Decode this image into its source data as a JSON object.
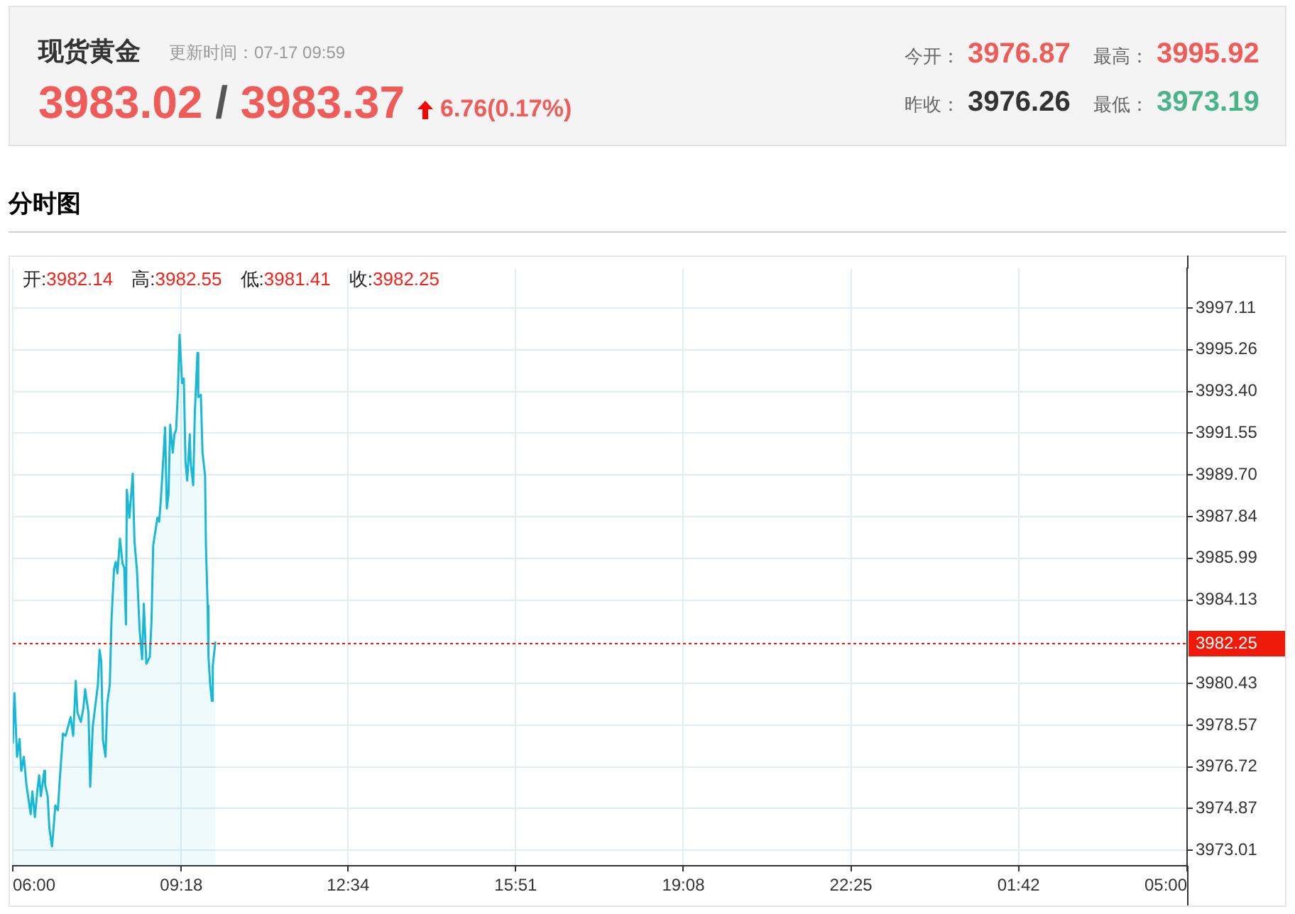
{
  "chart_data": {
    "type": "area",
    "title": "现货黄金",
    "subtitle": "更新时间：07-17 09:59",
    "annotations": [
      "3983.02 / 3983.37",
      "6.76(0.17%)",
      "今开： 3976.87",
      "最高： 3995.92",
      "昨收： 3976.26",
      "最低： 3973.19",
      "分时图",
      "开:3982.14",
      "高:3982.55",
      "低:3981.41",
      "收:3982.25"
    ],
    "x": [
      "--07-17T06:00",
      "--07-17T06:02",
      "--07-17T06:05",
      "--07-17T06:08",
      "--07-17T06:10",
      "--07-17T06:13",
      "--07-17T06:16",
      "--07-17T06:18",
      "--07-17T06:21",
      "--07-17T06:23",
      "--07-17T06:26",
      "--07-17T06:29",
      "--07-17T06:31",
      "--07-17T06:33",
      "--07-17T06:37",
      "--07-17T06:38",
      "--07-17T06:41",
      "--07-17T06:43",
      "--07-17T06:46",
      "--07-17T06:47",
      "--07-17T06:50",
      "--07-17T06:53",
      "--07-17T06:55",
      "--07-17T06:59",
      "--07-17T07:02",
      "--07-17T07:05",
      "--07-17T07:08",
      "--07-17T07:11",
      "--07-17T07:14",
      "--07-17T07:16",
      "--07-17T07:20",
      "--07-17T07:23",
      "--07-17T07:25",
      "--07-17T07:29",
      "--07-17T07:31",
      "--07-17T07:34",
      "--07-17T07:38",
      "--07-17T07:40",
      "--07-17T07:42",
      "--07-17T07:44",
      "--07-17T07:46",
      "--07-17T07:49",
      "--07-17T07:51",
      "--07-17T07:54",
      "--07-17T07:56",
      "--07-17T07:59",
      "--07-17T08:01",
      "--07-17T08:03",
      "--07-17T08:06",
      "--07-17T08:09",
      "--07-17T08:11",
      "--07-17T08:13",
      "--07-17T08:14",
      "--07-17T08:17",
      "--07-17T08:21",
      "--07-17T08:23",
      "--07-17T08:26",
      "--07-17T08:29",
      "--07-17T08:32",
      "--07-17T08:34",
      "--07-17T08:37",
      "--07-17T08:41",
      "--07-17T08:43",
      "--07-17T08:45",
      "--07-17T08:50",
      "--07-17T08:52",
      "--07-17T08:54",
      "--07-17T08:56",
      "--07-17T08:59",
      "--07-17T09:01",
      "--07-17T09:03",
      "--07-17T09:05",
      "--07-17T09:08",
      "--07-17T09:10",
      "--07-17T09:12",
      "--07-17T09:14",
      "--07-17T09:16",
      "--07-17T09:19",
      "--07-17T09:21",
      "--07-17T09:23",
      "--07-17T09:25",
      "--07-17T09:28",
      "--07-17T09:29",
      "--07-17T09:32",
      "--07-17T09:34",
      "--07-17T09:37",
      "--07-17T09:38",
      "--07-17T09:41",
      "--07-17T09:43",
      "--07-17T09:46",
      "--07-17T09:47",
      "--07-17T09:49",
      "--07-17T09:50",
      "--07-17T09:52",
      "--07-17T09:54",
      "--07-17T09:55",
      "--07-17T09:58"
    ],
    "values": [
      3977.79,
      3980,
      3977.17,
      3977.96,
      3976.55,
      3977.17,
      3975.94,
      3975.42,
      3974.62,
      3975.63,
      3974.49,
      3975.73,
      3976.35,
      3975.42,
      3976.55,
      3975.94,
      3975.42,
      3974,
      3973.19,
      3973.57,
      3975.01,
      3974.8,
      3976.04,
      3978.2,
      3978.1,
      3978.51,
      3978.93,
      3978.1,
      3980.54,
      3979.13,
      3978.72,
      3979.34,
      3980.17,
      3979.13,
      3975.84,
      3978.51,
      3979.75,
      3980.37,
      3981.92,
      3981.4,
      3977.9,
      3977.17,
      3979.55,
      3980.37,
      3983.26,
      3985.52,
      3985.83,
      3985.32,
      3986.86,
      3985.75,
      3985.57,
      3983.05,
      3989.03,
      3987.79,
      3989.75,
      3986.76,
      3985.42,
      3982.84,
      3981.5,
      3983.97,
      3981.3,
      3981.61,
      3983.15,
      3986.55,
      3987.79,
      3987.61,
      3988.61,
      3989.85,
      3991.81,
      3988.2,
      3988.82,
      3991.92,
      3990.68,
      3991.5,
      3991.71,
      3993.36,
      3995.92,
      3993.77,
      3993.97,
      3990.26,
      3989.44,
      3991.5,
      3990.26,
      3989.23,
      3992.53,
      3995.11,
      3993.15,
      3993.25,
      3990.68,
      3989.65,
      3986.55,
      3983.88,
      3981.61,
      3980.37,
      3979.65,
      3981.19,
      3982.25
    ],
    "color": "#19b9d6",
    "xlim": [
      "--07-17T06:00",
      "--07-18T05:00"
    ],
    "xticks": [
      {
        "value": "--07-17T06:00",
        "label": "06:00"
      },
      {
        "value": "--07-17T09:18",
        "label": "09:18"
      },
      {
        "value": "--07-17T12:34",
        "label": "12:34"
      },
      {
        "value": "--07-17T15:51",
        "label": "15:51"
      },
      {
        "value": "--07-17T19:08",
        "label": "19:08"
      },
      {
        "value": "--07-17T22:25",
        "label": "22:25"
      },
      {
        "value": "--07-18T01:42",
        "label": "01:42"
      },
      {
        "value": "--07-18T05:00",
        "label": "05:00"
      }
    ],
    "ylim": [
      3972.33,
      3998.86
    ],
    "yticks": [
      3973.01,
      3974.87,
      3976.72,
      3978.57,
      3980.43,
      3984.13,
      3985.99,
      3987.84,
      {
        "value": 3989.7,
        "label": "3989.70"
      },
      3991.55,
      {
        "value": 3993.4,
        "label": "3993.40"
      },
      3995.26,
      3997.11
    ],
    "grid": true,
    "ref_lines": [
      {
        "axis": "y",
        "value": 3982.25,
        "label": "3982.25",
        "color": "#f01a0a",
        "line_style": "dotted"
      }
    ]
  }
}
